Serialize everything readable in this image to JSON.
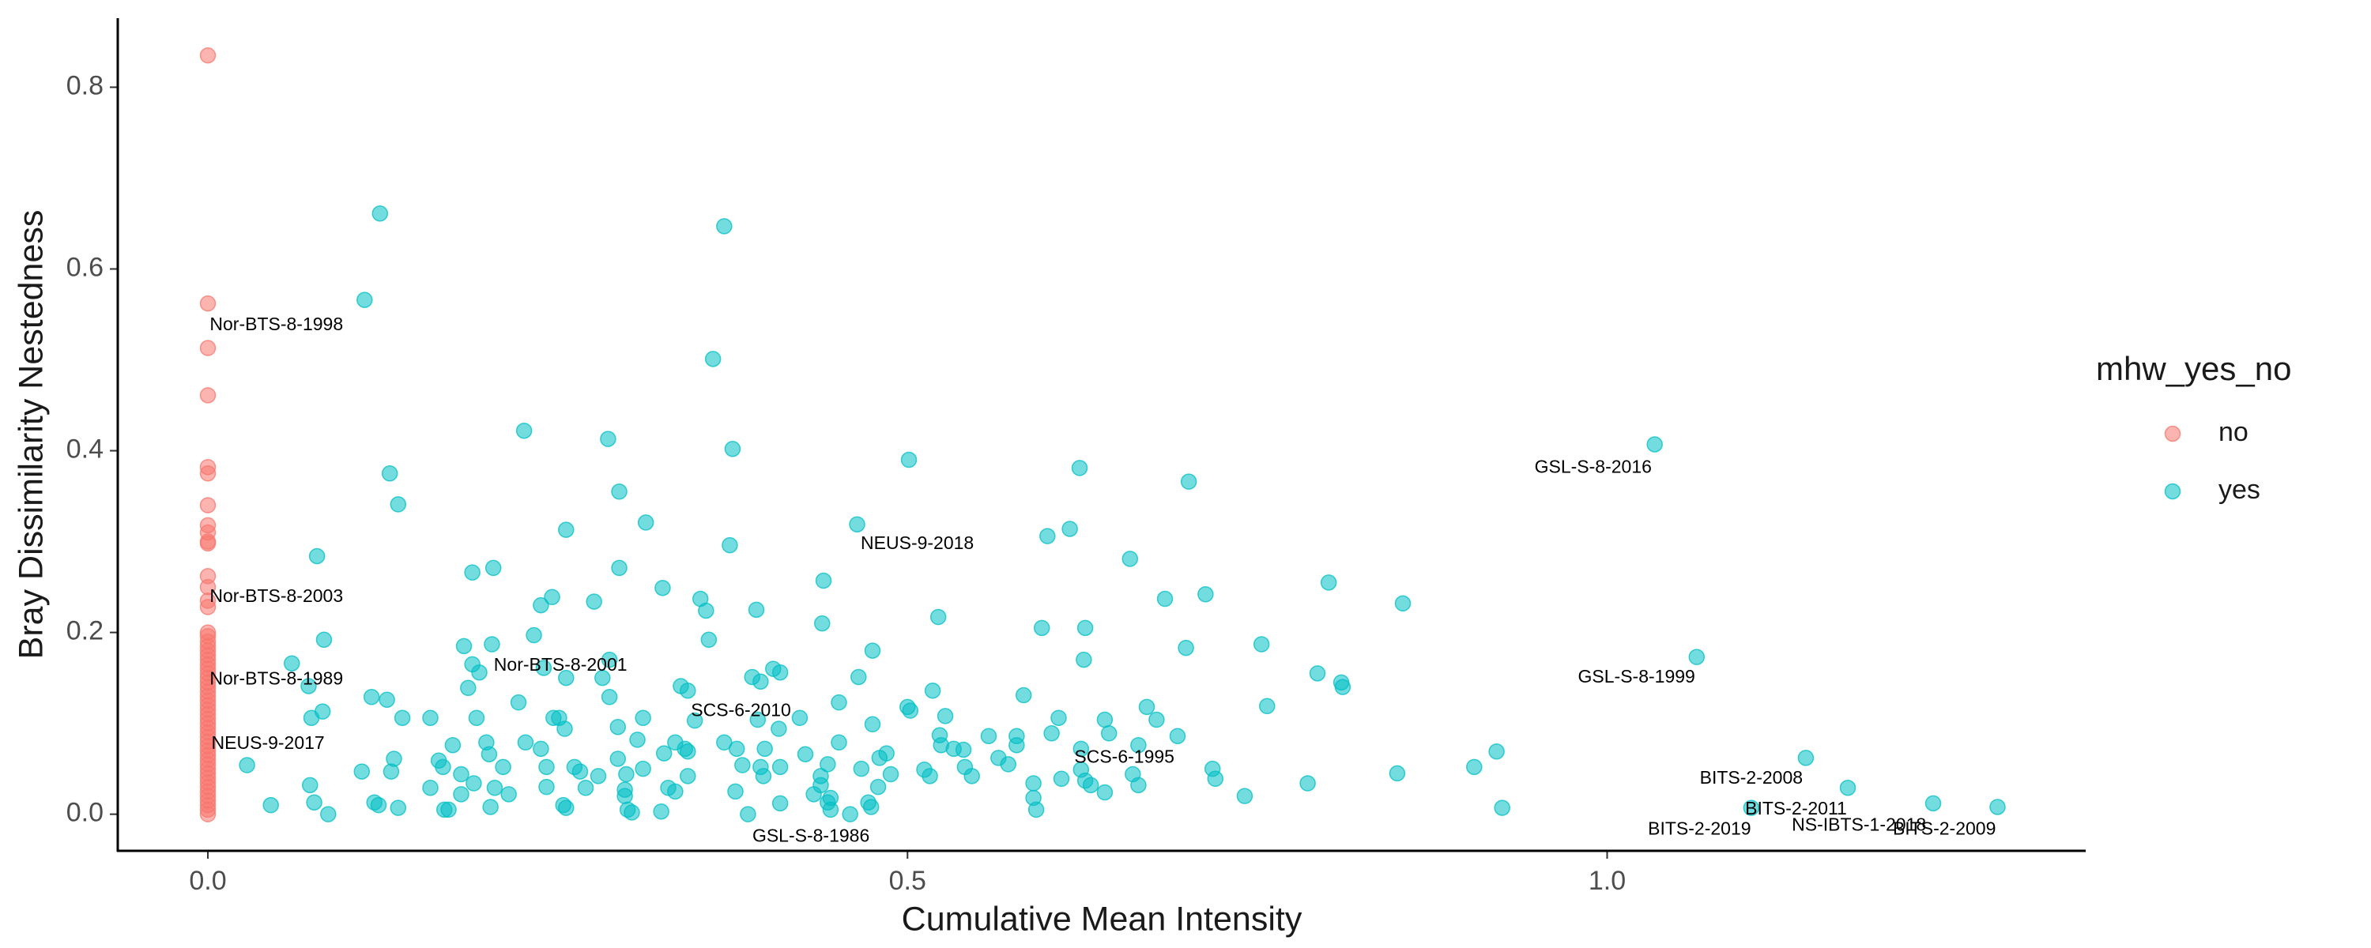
{
  "chart_data": {
    "type": "scatter",
    "x_label": "Cumulative Mean Intensity",
    "y_label": "Bray Dissimilarity Nestedness",
    "legend_title": "mhw_yes_no",
    "legend_position": "right",
    "grid": false,
    "xlim": [
      -0.0644,
      1.342
    ],
    "ylim": [
      -0.0403,
      0.876
    ],
    "xticks": [
      {
        "value": 0,
        "label": "0.0"
      },
      {
        "value": 0.5,
        "label": "0.5"
      },
      {
        "value": 1,
        "label": "1.0"
      }
    ],
    "yticks": [
      {
        "value": 0,
        "label": "0.0"
      },
      {
        "value": 0.2,
        "label": "0.2"
      },
      {
        "value": 0.4,
        "label": "0.4"
      },
      {
        "value": 0.6,
        "label": "0.6"
      },
      {
        "value": 0.8,
        "label": "0.8"
      }
    ],
    "series": [
      {
        "name": "no",
        "color": "#F8766D",
        "x": [
          0,
          0,
          0,
          0,
          0,
          0,
          0,
          0,
          0,
          0,
          0,
          0,
          0,
          0,
          0,
          0,
          0,
          0,
          0,
          0,
          0,
          0,
          0,
          0,
          0,
          0,
          0,
          0,
          0,
          0,
          0,
          0,
          0,
          0,
          0,
          0,
          0,
          0,
          0,
          0,
          0,
          0,
          0,
          0,
          0,
          0,
          0,
          0,
          0,
          0,
          0,
          0,
          0,
          0,
          0,
          0
        ],
        "y": [
          0.835,
          0.562,
          0.513,
          0.461,
          0.382,
          0.375,
          0.34,
          0.318,
          0.31,
          0.3,
          0.298,
          0.262,
          0.25,
          0.235,
          0.228,
          0.2,
          0.196,
          0.19,
          0.185,
          0.18,
          0.175,
          0.17,
          0.165,
          0.16,
          0.155,
          0.15,
          0.145,
          0.14,
          0.135,
          0.13,
          0.125,
          0.12,
          0.115,
          0.11,
          0.105,
          0.1,
          0.095,
          0.09,
          0.085,
          0.08,
          0.075,
          0.07,
          0.065,
          0.06,
          0.055,
          0.05,
          0.045,
          0.04,
          0.035,
          0.03,
          0.025,
          0.02,
          0.015,
          0.01,
          0.005,
          0
        ]
      },
      {
        "name": "yes",
        "color": "#00BFC4",
        "x": [
          0.123,
          0.369,
          0.112,
          0.361,
          1.034,
          0.226,
          0.375,
          0.286,
          0.501,
          0.623,
          0.13,
          0.464,
          0.294,
          0.313,
          0.256,
          0.701,
          1.064,
          0.616,
          0.6,
          0.373,
          0.136,
          0.659,
          0.078,
          0.294,
          0.204,
          0.189,
          0.44,
          0.801,
          0.713,
          0.684,
          0.854,
          0.325,
          0.352,
          0.246,
          0.276,
          0.238,
          0.356,
          0.392,
          0.522,
          0.439,
          0.596,
          0.627,
          0.233,
          0.358,
          0.083,
          0.183,
          0.203,
          0.475,
          0.699,
          0.753,
          0.626,
          0.793,
          0.81,
          0.811,
          0.06,
          0.189,
          0.194,
          0.24,
          0.287,
          0.256,
          0.282,
          0.389,
          0.395,
          0.404,
          0.409,
          0.338,
          0.465,
          0.518,
          0.186,
          0.117,
          0.072,
          0.128,
          0.343,
          0.287,
          0.583,
          0.757,
          0.451,
          0.222,
          0.247,
          0.348,
          0.393,
          0.423,
          0.5,
          0.502,
          0.527,
          0.608,
          0.641,
          0.671,
          0.678,
          0.082,
          0.074,
          0.139,
          0.159,
          0.192,
          0.251,
          0.255,
          0.293,
          0.311,
          0.408,
          0.475,
          0.523,
          0.558,
          0.578,
          0.603,
          0.644,
          0.693,
          0.524,
          0.533,
          0.54,
          0.578,
          0.624,
          0.665,
          0.175,
          0.199,
          0.227,
          0.307,
          0.334,
          0.341,
          0.369,
          0.378,
          0.398,
          0.451,
          0.485,
          0.48,
          0.133,
          0.165,
          0.201,
          0.238,
          0.293,
          0.326,
          0.343,
          0.427,
          0.565,
          0.572,
          0.921,
          1.142,
          0.028,
          0.168,
          0.211,
          0.242,
          0.262,
          0.311,
          0.382,
          0.395,
          0.409,
          0.443,
          0.467,
          0.512,
          0.541,
          0.905,
          0.624,
          0.718,
          0.11,
          0.131,
          0.181,
          0.266,
          0.279,
          0.299,
          0.343,
          0.397,
          0.438,
          0.488,
          0.516,
          0.546,
          0.61,
          0.627,
          0.661,
          0.85,
          0.72,
          0.786,
          0.073,
          0.159,
          0.19,
          0.205,
          0.215,
          0.242,
          0.27,
          0.298,
          0.329,
          0.438,
          0.479,
          0.631,
          0.665,
          1.172,
          0.59,
          0.181,
          0.298,
          0.334,
          0.377,
          0.433,
          0.445,
          0.59,
          0.641,
          0.741,
          1.103,
          1.233,
          1.279,
          0.045,
          0.076,
          0.119,
          0.122,
          0.136,
          0.169,
          0.172,
          0.202,
          0.254,
          0.256,
          0.3,
          0.303,
          0.324,
          0.409,
          0.443,
          0.472,
          0.474,
          0.445,
          0.592,
          0.086,
          0.386,
          0.459,
          0.925
        ],
        "y": [
          0.661,
          0.647,
          0.566,
          0.501,
          0.407,
          0.422,
          0.402,
          0.413,
          0.39,
          0.381,
          0.375,
          0.319,
          0.355,
          0.321,
          0.313,
          0.366,
          0.173,
          0.314,
          0.306,
          0.296,
          0.341,
          0.281,
          0.284,
          0.271,
          0.271,
          0.266,
          0.257,
          0.255,
          0.242,
          0.237,
          0.232,
          0.249,
          0.237,
          0.239,
          0.234,
          0.23,
          0.224,
          0.225,
          0.217,
          0.21,
          0.205,
          0.205,
          0.197,
          0.192,
          0.192,
          0.185,
          0.187,
          0.18,
          0.183,
          0.187,
          0.17,
          0.155,
          0.145,
          0.14,
          0.166,
          0.165,
          0.156,
          0.161,
          0.17,
          0.15,
          0.15,
          0.151,
          0.146,
          0.16,
          0.156,
          0.141,
          0.151,
          0.136,
          0.139,
          0.129,
          0.141,
          0.126,
          0.136,
          0.129,
          0.131,
          0.119,
          0.123,
          0.123,
          0.106,
          0.103,
          0.104,
          0.106,
          0.118,
          0.114,
          0.108,
          0.106,
          0.104,
          0.118,
          0.104,
          0.113,
          0.106,
          0.106,
          0.106,
          0.106,
          0.106,
          0.094,
          0.096,
          0.106,
          0.094,
          0.099,
          0.087,
          0.086,
          0.086,
          0.089,
          0.089,
          0.086,
          0.076,
          0.072,
          0.071,
          0.076,
          0.072,
          0.076,
          0.076,
          0.079,
          0.079,
          0.082,
          0.079,
          0.072,
          0.079,
          0.072,
          0.072,
          0.079,
          0.067,
          0.062,
          0.061,
          0.059,
          0.066,
          0.072,
          0.061,
          0.067,
          0.069,
          0.066,
          0.062,
          0.055,
          0.069,
          0.062,
          0.054,
          0.052,
          0.052,
          0.052,
          0.052,
          0.05,
          0.054,
          0.052,
          0.052,
          0.055,
          0.05,
          0.049,
          0.052,
          0.052,
          0.049,
          0.05,
          0.047,
          0.047,
          0.044,
          0.047,
          0.042,
          0.044,
          0.042,
          0.042,
          0.042,
          0.044,
          0.042,
          0.042,
          0.039,
          0.037,
          0.044,
          0.045,
          0.039,
          0.034,
          0.032,
          0.029,
          0.034,
          0.029,
          0.022,
          0.03,
          0.029,
          0.027,
          0.029,
          0.032,
          0.03,
          0.032,
          0.032,
          0.029,
          0.034,
          0.022,
          0.02,
          0.025,
          0.025,
          0.022,
          0.018,
          0.018,
          0.024,
          0.02,
          0.007,
          0.012,
          0.008,
          0.01,
          0.013,
          0.013,
          0.01,
          0.007,
          0.005,
          0.005,
          0.008,
          0.01,
          0.007,
          0.005,
          0.002,
          0.003,
          0.012,
          0.013,
          0.013,
          0.008,
          0.005,
          0.005,
          0,
          0,
          0,
          0.007
        ]
      }
    ],
    "annotations": [
      {
        "text": "Nor-BTS-8-1998",
        "x": 0.049,
        "y": 0.538
      },
      {
        "text": "Nor-BTS-8-2003",
        "x": 0.049,
        "y": 0.239
      },
      {
        "text": "Nor-BTS-8-1989",
        "x": 0.049,
        "y": 0.148
      },
      {
        "text": "NEUS-9-2017",
        "x": 0.043,
        "y": 0.077
      },
      {
        "text": "Nor-BTS-8-2001",
        "x": 0.252,
        "y": 0.163
      },
      {
        "text": "SCS-6-2010",
        "x": 0.381,
        "y": 0.113
      },
      {
        "text": "NEUS-9-2018",
        "x": 0.507,
        "y": 0.297
      },
      {
        "text": "GSL-S-8-2016",
        "x": 0.99,
        "y": 0.381
      },
      {
        "text": "GSL-S-8-1999",
        "x": 1.021,
        "y": 0.15
      },
      {
        "text": "SCS-6-1995",
        "x": 0.655,
        "y": 0.062
      },
      {
        "text": "GSL-S-8-1986",
        "x": 0.431,
        "y": -0.025
      },
      {
        "text": "BITS-2-2008",
        "x": 1.103,
        "y": 0.039
      },
      {
        "text": "BITS-2-2011",
        "x": 1.135,
        "y": 0.005
      },
      {
        "text": "BITS-2-2019",
        "x": 1.066,
        "y": -0.017
      },
      {
        "text": "NS-IBTS-1-2018",
        "x": 1.18,
        "y": -0.013
      },
      {
        "text": "BITS-2-2009",
        "x": 1.241,
        "y": -0.017
      }
    ]
  }
}
